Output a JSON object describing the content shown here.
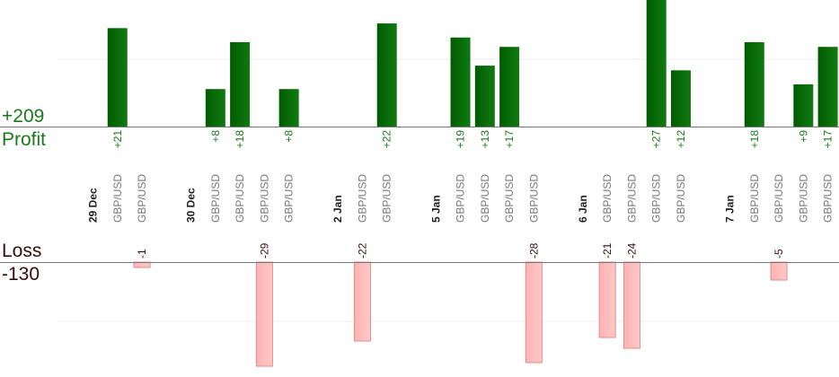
{
  "summary": {
    "profit_total": "+209",
    "profit_label": "Profit",
    "loss_label": "Loss",
    "loss_total": "-130"
  },
  "colors": {
    "profit_bar_dark": "#005c00",
    "profit_bar_light": "#117a11",
    "profit_text": "#1a7a1a",
    "loss_bar": "#ffb3b3",
    "loss_bar_edge": "#e88a8a",
    "loss_text": "#3a0a0a",
    "date_text": "#222222",
    "pair_text": "#777777",
    "axis": "#777777",
    "grid": "#eeeeee"
  },
  "chart_data": {
    "type": "bar",
    "units": "pips",
    "profit_axis_max": 27,
    "loss_axis_max": 29,
    "columns": [
      {
        "kind": "date",
        "label": "29 Dec"
      },
      {
        "kind": "trade",
        "label": "GBP/USD",
        "value": 21
      },
      {
        "kind": "trade",
        "label": "GBP/USD",
        "value": -1
      },
      {
        "kind": "gap"
      },
      {
        "kind": "date",
        "label": "30 Dec"
      },
      {
        "kind": "trade",
        "label": "GBP/USD",
        "value": 8
      },
      {
        "kind": "trade",
        "label": "GBP/USD",
        "value": 18
      },
      {
        "kind": "trade",
        "label": "GBP/USD",
        "value": -29
      },
      {
        "kind": "trade",
        "label": "GBP/USD",
        "value": 8
      },
      {
        "kind": "gap"
      },
      {
        "kind": "date",
        "label": "2 Jan"
      },
      {
        "kind": "trade",
        "label": "GBP/USD",
        "value": -22
      },
      {
        "kind": "trade",
        "label": "GBP/USD",
        "value": 22
      },
      {
        "kind": "gap"
      },
      {
        "kind": "date",
        "label": "5 Jan"
      },
      {
        "kind": "trade",
        "label": "GBP/USD",
        "value": 19
      },
      {
        "kind": "trade",
        "label": "GBP/USD",
        "value": 13
      },
      {
        "kind": "trade",
        "label": "GBP/USD",
        "value": 17
      },
      {
        "kind": "trade",
        "label": "GBP/USD",
        "value": -28
      },
      {
        "kind": "gap"
      },
      {
        "kind": "date",
        "label": "6 Jan"
      },
      {
        "kind": "trade",
        "label": "GBP/USD",
        "value": -21
      },
      {
        "kind": "trade",
        "label": "GBP/USD",
        "value": -24
      },
      {
        "kind": "trade",
        "label": "GBP/USD",
        "value": 27
      },
      {
        "kind": "trade",
        "label": "GBP/USD",
        "value": 12
      },
      {
        "kind": "gap"
      },
      {
        "kind": "date",
        "label": "7 Jan"
      },
      {
        "kind": "trade",
        "label": "GBP/USD",
        "value": 18
      },
      {
        "kind": "trade",
        "label": "GBP/USD",
        "value": -5
      },
      {
        "kind": "trade",
        "label": "GBP/USD",
        "value": 9
      },
      {
        "kind": "trade",
        "label": "GBP/USD",
        "value": 17
      }
    ]
  }
}
